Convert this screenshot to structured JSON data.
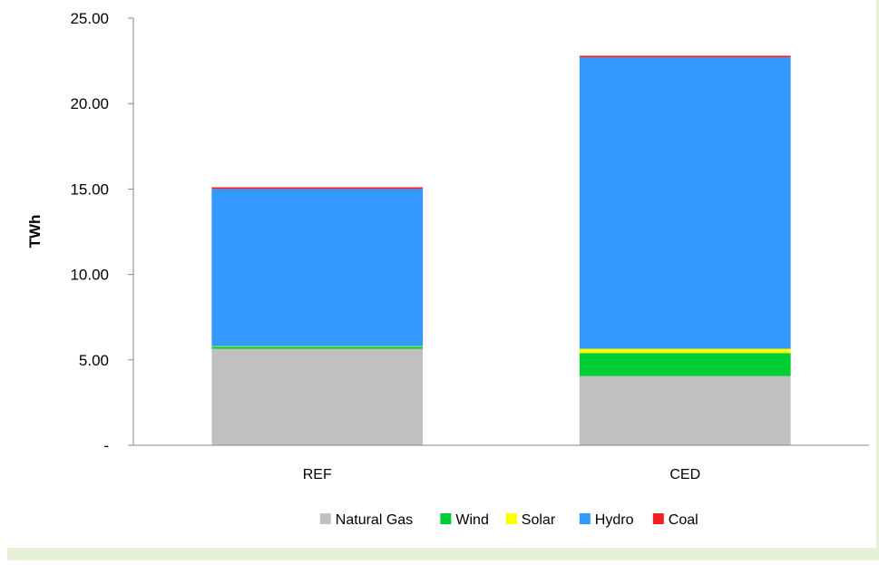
{
  "chart_data": {
    "type": "bar",
    "stacked": true,
    "categories": [
      "REF",
      "CED"
    ],
    "series": [
      {
        "name": "Natural Gas",
        "color": "#c0c0c0",
        "values": [
          5.65,
          4.05
        ]
      },
      {
        "name": "Wind",
        "color": "#00cc33",
        "values": [
          0.12,
          1.35
        ]
      },
      {
        "name": "Solar",
        "color": "#ffff00",
        "values": [
          0.03,
          0.25
        ]
      },
      {
        "name": "Hydro",
        "color": "#3399ff",
        "values": [
          9.2,
          17.05
        ]
      },
      {
        "name": "Coal",
        "color": "#ee2222",
        "values": [
          0.1,
          0.1
        ]
      }
    ],
    "ylabel": "TWh",
    "xlabel": "",
    "ylim": [
      0,
      25
    ],
    "yticks": [
      0,
      5,
      10,
      15,
      20,
      25
    ],
    "ytick_labels": [
      "-",
      "5.00",
      "10.00",
      "15.00",
      "20.00",
      "25.00"
    ],
    "grid": false,
    "legend_position": "bottom"
  }
}
